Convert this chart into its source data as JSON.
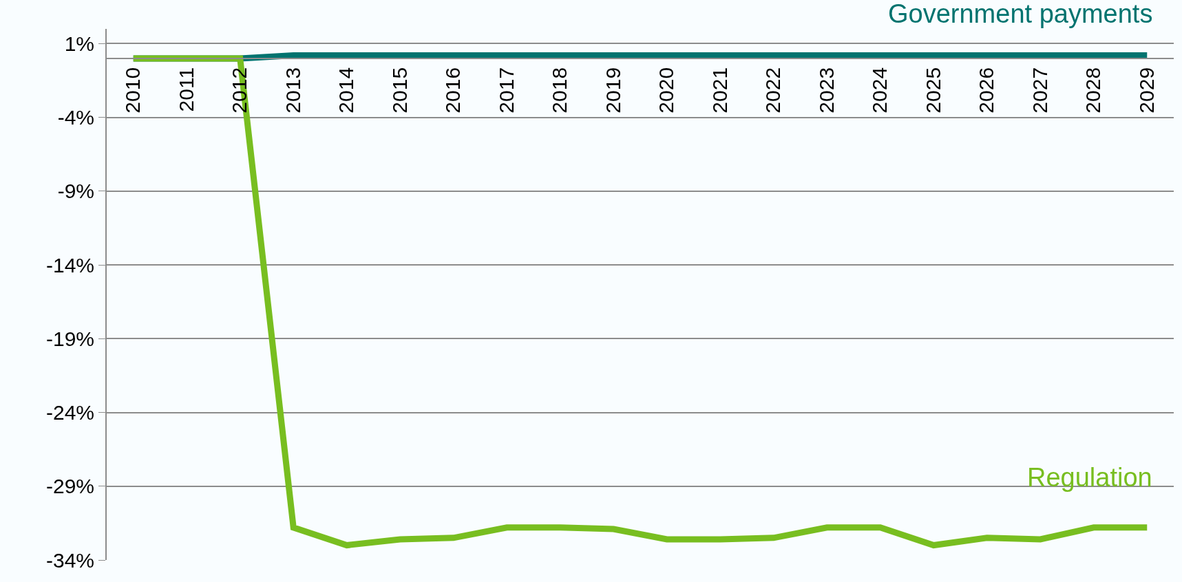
{
  "chart_data": {
    "type": "line",
    "categories": [
      "2010",
      "2011",
      "2012",
      "2013",
      "2014",
      "2015",
      "2016",
      "2017",
      "2018",
      "2019",
      "2020",
      "2021",
      "2022",
      "2023",
      "2024",
      "2025",
      "2026",
      "2027",
      "2028",
      "2029"
    ],
    "series": [
      {
        "name": "Government payments",
        "color": "#00736f",
        "values": [
          0,
          0,
          0,
          0.2,
          0.2,
          0.2,
          0.2,
          0.2,
          0.2,
          0.2,
          0.2,
          0.2,
          0.2,
          0.2,
          0.2,
          0.2,
          0.2,
          0.2,
          0.2,
          0.2
        ]
      },
      {
        "name": "Regulation",
        "color": "#78be20",
        "values": [
          0,
          0,
          0,
          -31.8,
          -33.0,
          -32.6,
          -32.5,
          -31.8,
          -31.8,
          -31.9,
          -32.6,
          -32.6,
          -32.5,
          -31.8,
          -31.8,
          -33.0,
          -32.5,
          -32.6,
          -31.8,
          -31.8
        ]
      }
    ],
    "ylim": [
      -34,
      2
    ],
    "yticks": [
      {
        "value": 1,
        "label": "1%"
      },
      {
        "value": -4,
        "label": "-4%"
      },
      {
        "value": -9,
        "label": "-9%"
      },
      {
        "value": -14,
        "label": "-14%"
      },
      {
        "value": -19,
        "label": "-19%"
      },
      {
        "value": -24,
        "label": "-24%"
      },
      {
        "value": -29,
        "label": "-29%"
      },
      {
        "value": -34,
        "label": "-34%"
      }
    ],
    "grid": "y",
    "legend": false,
    "marker": "none",
    "line_style": "solid"
  }
}
